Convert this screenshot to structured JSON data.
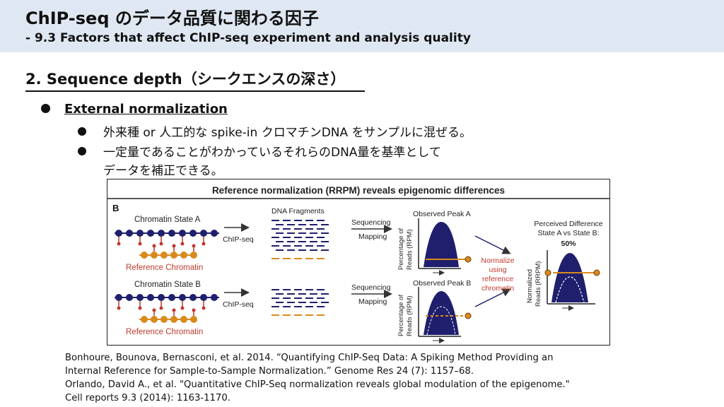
{
  "header": {
    "title": "ChIP-seq のデータ品質に関わる因子",
    "subtitle": "- 9.3 Factors that affect ChIP-seq experiment and analysis quality"
  },
  "section": {
    "title": "2. Sequence depth（シークエンスの深さ）"
  },
  "bullets": {
    "level1": "External normalization",
    "items": [
      {
        "lines": [
          "外来種 or 人工的な spike-in クロマチンDNA をサンプルに混ぜる。"
        ]
      },
      {
        "lines": [
          "一定量であることがわかっているそれらのDNA量を基準として",
          "データを補正できる。"
        ]
      }
    ]
  },
  "figure": {
    "title": "Reference normalization (RRPM) reveals epigenomic differences",
    "panel_label": "B",
    "chromatin_a": "Chromatin State A",
    "chromatin_b": "Chromatin State B",
    "reference": "Reference Chromatin",
    "chip_seq": "ChIP-seq",
    "dna_fragments": "DNA Fragments",
    "sequencing": "Sequencing",
    "mapping": "Mapping",
    "peak_a": "Observed Peak A",
    "peak_b": "Observed Peak B",
    "ylabel_1": "Percentage of",
    "ylabel_2": "Reads (RPM)",
    "normalize": [
      "Normalize",
      "using",
      "reference",
      "chromatin"
    ],
    "perceived": [
      "Perceived Difference",
      "State A vs State B:",
      "50%"
    ],
    "norm_ylabel_1": "Normalized",
    "norm_ylabel_2": "Reads (RRPM)"
  },
  "references": [
    "Bonhoure, Bounova, Bernasconi, et al. 2014. “Quantifying ChIP-Seq Data: A Spiking Method Providing an",
    "Internal Reference for Sample-to-Sample Normalization.” Genome Res 24 (7): 1157–68.",
    "Orlando, David A., et al. \"Quantitative ChIP-Seq normalization reveals global modulation of the epigenome.\"",
    "Cell reports 9.3 (2014): 1163-1170."
  ],
  "colors": {
    "header_bg": "#dfe8f2",
    "navy": "#1f1f6e",
    "orange": "#d98a1c",
    "red_text": "#c0392b"
  }
}
